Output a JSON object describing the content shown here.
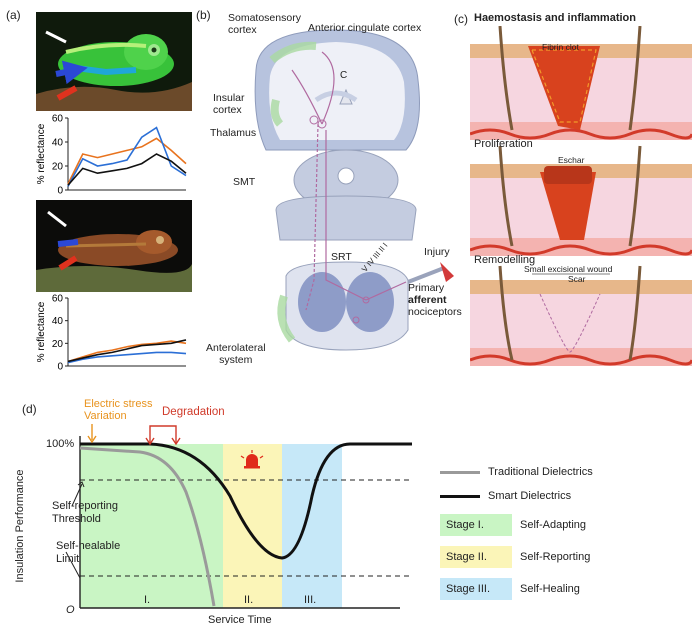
{
  "panel_a": {
    "label": "(a)",
    "chart_top": {
      "ylabel": "% reflectance",
      "ylim": [
        0,
        60
      ],
      "yticks": [
        "0",
        "20",
        "40",
        "60"
      ],
      "series": [
        {
          "color": "#e8731e",
          "values": [
            5,
            30,
            27,
            30,
            33,
            36,
            43,
            33,
            22
          ]
        },
        {
          "color": "#2b6fd6",
          "values": [
            3,
            26,
            20,
            22,
            25,
            44,
            52,
            20,
            12
          ]
        },
        {
          "color": "#111111",
          "values": [
            4,
            18,
            14,
            16,
            18,
            22,
            30,
            24,
            14
          ]
        }
      ]
    },
    "chart_bottom": {
      "ylabel": "% reflectance",
      "ylim": [
        0,
        60
      ],
      "yticks": [
        "0",
        "20",
        "40",
        "60"
      ],
      "series": [
        {
          "color": "#e8731e",
          "values": [
            4,
            8,
            12,
            14,
            17,
            19,
            20,
            22,
            20
          ]
        },
        {
          "color": "#2b6fd6",
          "values": [
            3,
            6,
            8,
            9,
            10,
            11,
            12,
            12,
            11
          ]
        },
        {
          "color": "#111111",
          "values": [
            4,
            7,
            10,
            12,
            15,
            18,
            19,
            20,
            23
          ]
        }
      ]
    }
  },
  "panel_b": {
    "label": "(b)",
    "somatosensory": "Somatosensory\ncortex",
    "acc": "Anterior cingulate cortex",
    "c_label": "C",
    "insular": "Insular\ncortex",
    "thalamus": "Thalamus",
    "smt": "SMT",
    "srt": "SRT",
    "injury": "Injury",
    "primary": "Primary",
    "afferent": "afferent",
    "nociceptors": "nociceptors",
    "anterolateral": "Anterolateral\nsystem",
    "laminae": [
      "V",
      "IV",
      "III",
      "II",
      "I"
    ]
  },
  "panel_c": {
    "label": "(c)",
    "title": "Haemostasis and inflammation",
    "fibrin": "Fibrin clot",
    "proliferation": "Proliferation",
    "eschar": "Eschar",
    "remodelling": "Remodelling",
    "small_wound": "Small excisional wound",
    "scar": "Scar"
  },
  "panel_d": {
    "label": "(d)",
    "electric_stress": "Electric stress\nVariation",
    "degradation": "Degradation",
    "y100": "100%",
    "origin": "O",
    "ylabel": "Insulation Performance",
    "xlabel": "Service Time",
    "self_reporting_threshold": "Self-reporting\nThreshold",
    "self_healable_limit": "Self-healable\nLimit",
    "stage_roman": [
      "I.",
      "II.",
      "III."
    ],
    "legend": {
      "traditional": "Traditional Dielectrics",
      "smart": "Smart Dielectrics",
      "stages": [
        {
          "tag": "Stage I.",
          "text": "Self-Adapting",
          "color": "#c9f5c4"
        },
        {
          "tag": "Stage II.",
          "text": "Self-Reporting",
          "color": "#fbf5b8"
        },
        {
          "tag": "Stage III.",
          "text": "Self-Healing",
          "color": "#c6e8f8"
        }
      ]
    },
    "colors": {
      "stage1": "#c9f5c4",
      "stage2": "#fbf5b8",
      "stage3": "#c6e8f8",
      "accent_orange": "#e8931e",
      "accent_red": "#d03a2a"
    }
  }
}
